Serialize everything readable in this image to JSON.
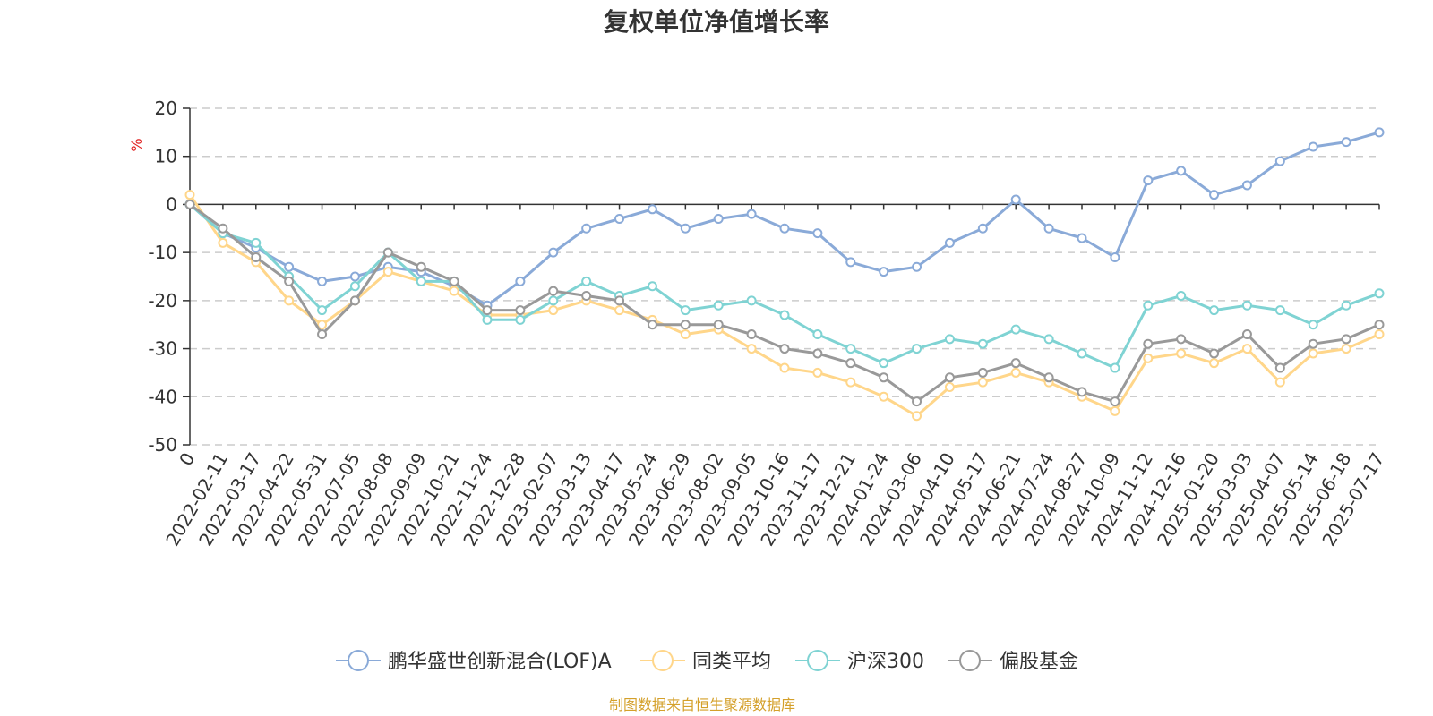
{
  "chart_data": {
    "type": "line",
    "title": "复权单位净值增长率",
    "ylabel": "%",
    "ylabel_color": "#e02020",
    "ylim": [
      -50,
      20
    ],
    "yticks": [
      20,
      10,
      0,
      -10,
      -20,
      -30,
      -40,
      -50
    ],
    "grid": true,
    "legend_position": "bottom",
    "x": [
      "0",
      "2022-02-11",
      "2022-03-17",
      "2022-04-22",
      "2022-05-31",
      "2022-07-05",
      "2022-08-08",
      "2022-09-09",
      "2022-10-21",
      "2022-11-24",
      "2022-12-28",
      "2023-02-07",
      "2023-03-13",
      "2023-04-17",
      "2023-05-24",
      "2023-06-29",
      "2023-08-02",
      "2023-09-05",
      "2023-10-16",
      "2023-11-17",
      "2023-12-21",
      "2024-01-24",
      "2024-03-06",
      "2024-04-10",
      "2024-05-17",
      "2024-06-21",
      "2024-07-24",
      "2024-08-27",
      "2024-10-09",
      "2024-11-12",
      "2024-12-16",
      "2025-01-20",
      "2025-03-03",
      "2025-04-07",
      "2025-05-14",
      "2025-06-18",
      "2025-07-17"
    ],
    "series": [
      {
        "name": "鹏华盛世创新混合(LOF)A",
        "color": "#8aaad8",
        "values": [
          0,
          -6,
          -9,
          -13,
          -16,
          -15,
          -13,
          -14,
          -17,
          -21,
          -16,
          -10,
          -5,
          -3,
          -1,
          -5,
          -3,
          -2,
          -5,
          -6,
          -12,
          -14,
          -13,
          -8,
          -5,
          1,
          -5,
          -7,
          -11,
          5,
          7,
          2,
          4,
          9,
          12,
          13,
          15
        ]
      },
      {
        "name": "同类平均",
        "color": "#ffd68a",
        "values": [
          2,
          -8,
          -12,
          -20,
          -25,
          -20,
          -14,
          -16,
          -18,
          -23,
          -23,
          -22,
          -20,
          -22,
          -24,
          -27,
          -26,
          -30,
          -34,
          -35,
          -37,
          -40,
          -44,
          -38,
          -37,
          -35,
          -37,
          -40,
          -43,
          -32,
          -31,
          -33,
          -30,
          -37,
          -31,
          -30,
          -27
        ]
      },
      {
        "name": "沪深300",
        "color": "#7fd3d3",
        "values": [
          0,
          -6,
          -8,
          -15,
          -22,
          -17,
          -10,
          -16,
          -16,
          -24,
          -24,
          -20,
          -16,
          -19,
          -17,
          -22,
          -21,
          -20,
          -23,
          -27,
          -30,
          -33,
          -30,
          -28,
          -29,
          -26,
          -28,
          -31,
          -34,
          -21,
          -19,
          -22,
          -21,
          -22,
          -25,
          -21,
          -18.5
        ]
      },
      {
        "name": "偏股基金",
        "color": "#999999",
        "values": [
          0,
          -5,
          -11,
          -16,
          -27,
          -20,
          -10,
          -13,
          -16,
          -22,
          -22,
          -18,
          -19,
          -20,
          -25,
          -25,
          -25,
          -27,
          -30,
          -31,
          -33,
          -36,
          -41,
          -36,
          -35,
          -33,
          -36,
          -39,
          -41,
          -29,
          -28,
          -31,
          -27,
          -34,
          -29,
          -28,
          -25
        ]
      }
    ]
  },
  "source_note": "制图数据来自恒生聚源数据库",
  "source_color": "#d4a02a"
}
